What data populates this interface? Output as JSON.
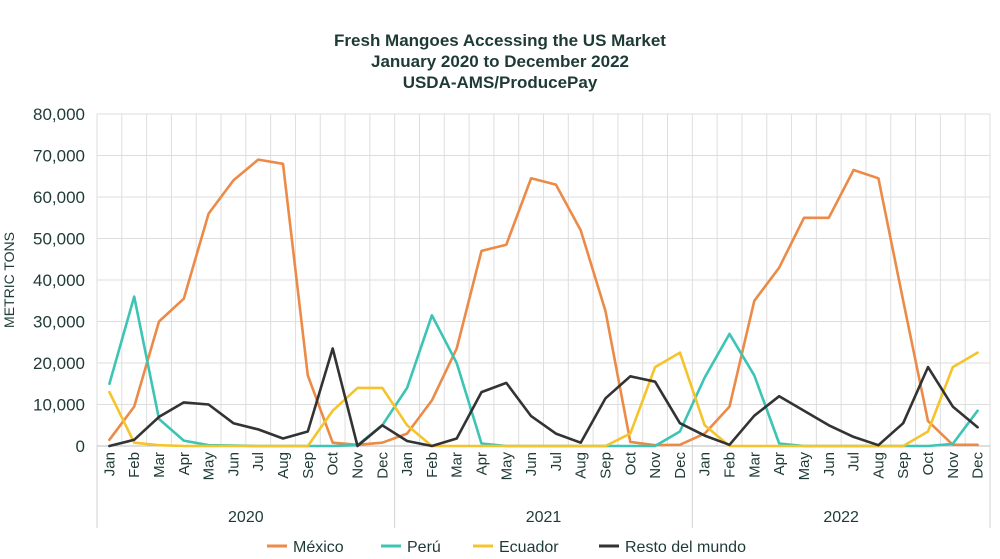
{
  "chart_data": {
    "type": "line",
    "title": [
      "Fresh Mangoes Accessing the US Market",
      "January 2020 to December 2022",
      "USDA-AMS/ProducePay"
    ],
    "ylabel": "METRIC TONS",
    "ylim": [
      0,
      80000
    ],
    "yticks": [
      "0",
      "10,000",
      "20,000",
      "30,000",
      "40,000",
      "50,000",
      "60,000",
      "70,000",
      "80,000"
    ],
    "yticks_values": [
      0,
      10000,
      20000,
      30000,
      40000,
      50000,
      60000,
      70000,
      80000
    ],
    "categories": [
      "Jan",
      "Feb",
      "Mar",
      "Apr",
      "May",
      "Jun",
      "Jul",
      "Aug",
      "Sep",
      "Oct",
      "Nov",
      "Dec",
      "Jan",
      "Feb",
      "Mar",
      "Apr",
      "May",
      "Jun",
      "Jul",
      "Aug",
      "Sep",
      "Oct",
      "Nov",
      "Dec",
      "Jan",
      "Feb",
      "Mar",
      "Apr",
      "May",
      "Jun",
      "Jul",
      "Aug",
      "Sep",
      "Oct",
      "Nov",
      "Dec"
    ],
    "years": [
      "2020",
      "2021",
      "2022"
    ],
    "grid": true,
    "legend_position": "bottom",
    "series": [
      {
        "name": "México",
        "color": "#ec8a47",
        "values": [
          1500,
          9500,
          30000,
          35500,
          56000,
          64000,
          69000,
          68000,
          17000,
          800,
          300,
          800,
          3000,
          11000,
          23500,
          47000,
          48500,
          64500,
          63000,
          52000,
          32500,
          1000,
          200,
          300,
          3000,
          9500,
          35000,
          43000,
          55000,
          55000,
          66500,
          64500,
          35000,
          6000,
          300,
          300
        ]
      },
      {
        "name": "Perú",
        "color": "#3cc4b4",
        "values": [
          15000,
          36000,
          6500,
          1300,
          200,
          100,
          0,
          0,
          0,
          0,
          200,
          5000,
          14000,
          31500,
          20000,
          600,
          0,
          0,
          0,
          0,
          0,
          0,
          0,
          3500,
          16500,
          27000,
          17000,
          600,
          0,
          0,
          0,
          0,
          0,
          0,
          500,
          8500
        ]
      },
      {
        "name": "Ecuador",
        "color": "#f5c42c",
        "values": [
          13000,
          800,
          200,
          0,
          0,
          0,
          0,
          0,
          0,
          8500,
          14000,
          14000,
          5000,
          0,
          0,
          0,
          0,
          0,
          0,
          0,
          0,
          3000,
          19000,
          22500,
          5000,
          0,
          0,
          0,
          0,
          0,
          0,
          0,
          0,
          3500,
          19000,
          22500
        ]
      },
      {
        "name": "Resto del mundo",
        "color": "#333333",
        "values": [
          0,
          1500,
          7000,
          10500,
          10000,
          5500,
          4000,
          1800,
          3500,
          23500,
          0,
          5000,
          1200,
          0,
          1800,
          13000,
          15200,
          7200,
          3000,
          800,
          11500,
          16800,
          15500,
          5500,
          2500,
          300,
          7300,
          12000,
          8500,
          5000,
          2200,
          200,
          5500,
          19000,
          9500,
          4500
        ]
      }
    ]
  }
}
